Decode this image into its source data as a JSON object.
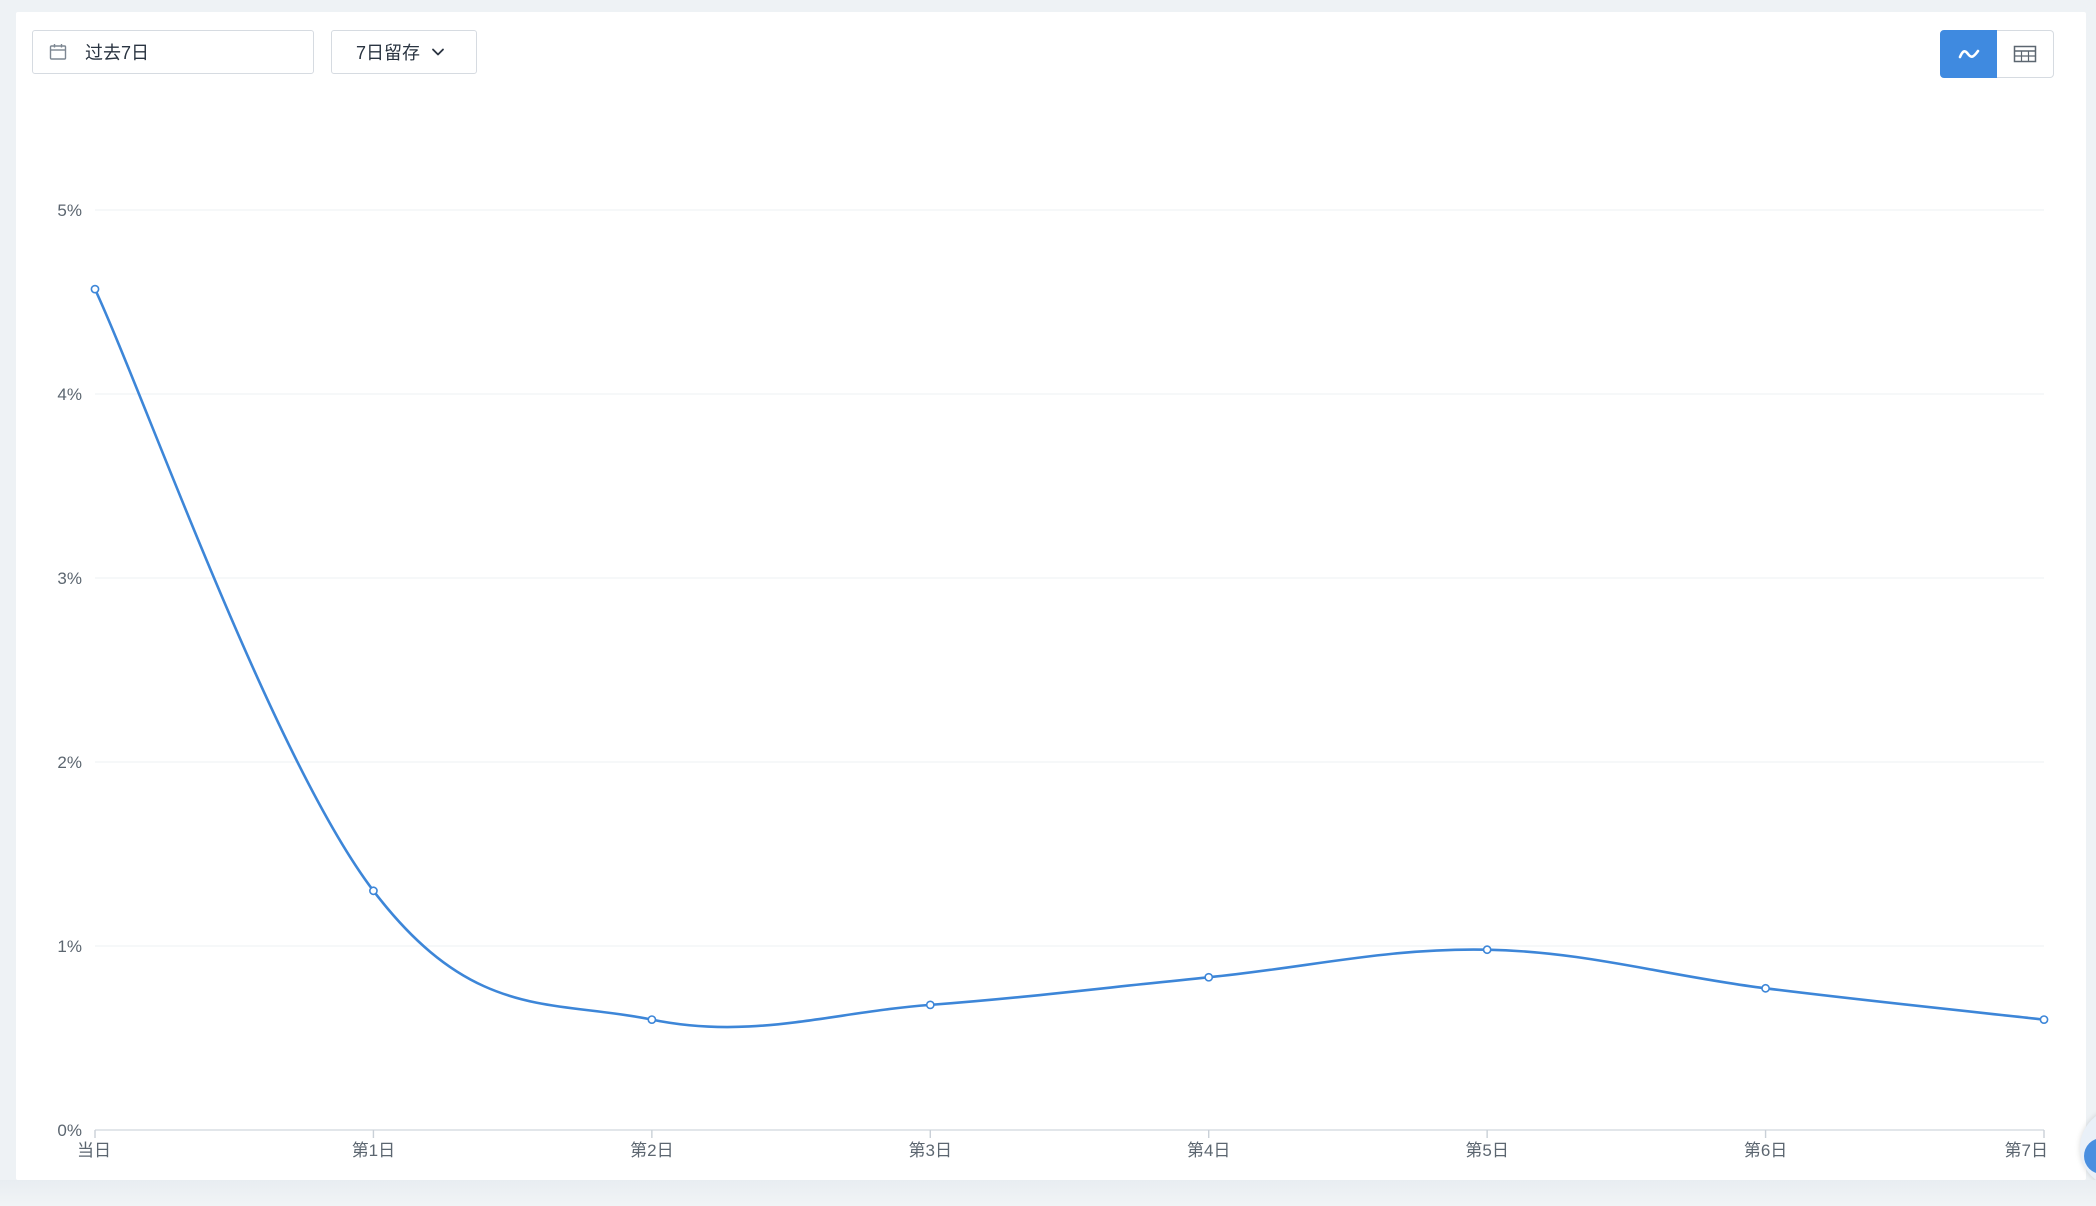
{
  "toolbar": {
    "date_range": "过去7日",
    "retention_type": "7日留存",
    "date_icon": "calendar-icon",
    "dropdown_icon": "chevron-down-icon"
  },
  "view_toggle": {
    "line_view_icon": "line-chart-icon",
    "table_view_icon": "table-icon",
    "active": "line"
  },
  "colors": {
    "accent": "#3f8ae0",
    "line": "#3d86d8",
    "grid": "#eef0f3",
    "axis_text": "#5c6670"
  },
  "chart_data": {
    "type": "line",
    "categories": [
      "当日",
      "第1日",
      "第2日",
      "第3日",
      "第4日",
      "第5日",
      "第6日",
      "第7日"
    ],
    "series": [
      {
        "values": [
          4.57,
          1.3,
          0.6,
          0.68,
          0.83,
          0.98,
          0.77,
          0.6
        ]
      }
    ],
    "y_ticks": [
      "0%",
      "1%",
      "2%",
      "3%",
      "4%",
      "5%"
    ],
    "ylim": [
      0,
      5
    ],
    "y_unit": "%",
    "grid": true,
    "smooth": true,
    "show_markers": true,
    "title": "",
    "xlabel": "",
    "ylabel": ""
  }
}
